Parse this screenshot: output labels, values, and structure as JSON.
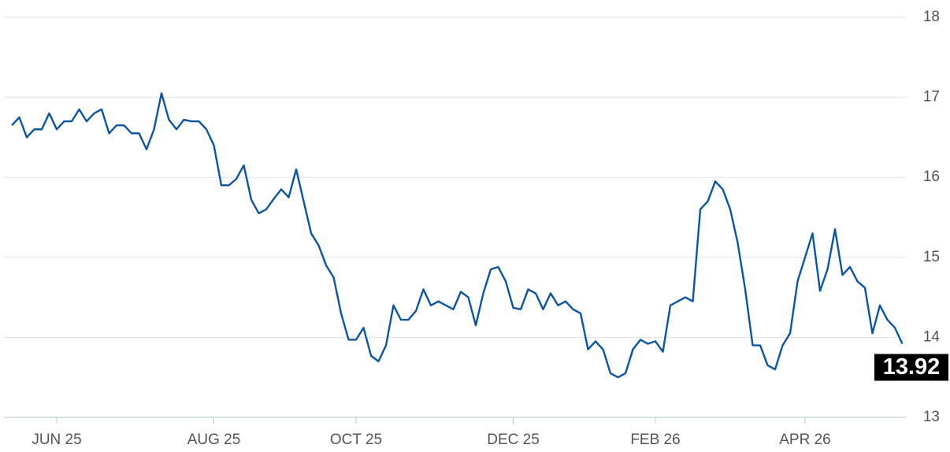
{
  "chart_data": {
    "type": "line",
    "color": "#0b55a3",
    "grid": true,
    "ylim": [
      13,
      18
    ],
    "yticks": [
      13,
      14,
      15,
      16,
      17,
      18
    ],
    "categories": [
      null,
      null,
      null,
      null,
      null,
      null,
      "JUN 25",
      null,
      null,
      null,
      null,
      null,
      null,
      null,
      null,
      null,
      null,
      null,
      null,
      null,
      null,
      null,
      null,
      null,
      null,
      null,
      null,
      "AUG 25",
      null,
      null,
      null,
      null,
      null,
      null,
      null,
      null,
      null,
      null,
      null,
      null,
      null,
      null,
      null,
      null,
      null,
      null,
      "OCT 25",
      null,
      null,
      null,
      null,
      null,
      null,
      null,
      null,
      null,
      null,
      null,
      null,
      null,
      null,
      null,
      null,
      null,
      null,
      null,
      null,
      "DEC 25",
      null,
      null,
      null,
      null,
      null,
      null,
      null,
      null,
      null,
      null,
      null,
      null,
      null,
      null,
      null,
      null,
      null,
      null,
      "FEB 26",
      null,
      null,
      null,
      null,
      null,
      null,
      null,
      null,
      null,
      null,
      null,
      null,
      null,
      null,
      null,
      null,
      null,
      null,
      null,
      "APR 26",
      null,
      null,
      null,
      null,
      null,
      null,
      null,
      null,
      null,
      null,
      null,
      null,
      null
    ],
    "values": [
      16.65,
      16.75,
      16.5,
      16.6,
      16.6,
      16.8,
      16.6,
      16.7,
      16.7,
      16.85,
      16.7,
      16.8,
      16.85,
      16.55,
      16.65,
      16.65,
      16.55,
      16.55,
      16.35,
      16.6,
      17.05,
      16.72,
      16.6,
      16.72,
      16.7,
      16.7,
      16.6,
      16.4,
      15.9,
      15.9,
      15.98,
      16.15,
      15.72,
      15.55,
      15.6,
      15.73,
      15.85,
      15.75,
      16.1,
      15.7,
      15.3,
      15.15,
      14.9,
      14.75,
      14.3,
      13.97,
      13.97,
      14.12,
      13.77,
      13.7,
      13.9,
      14.4,
      14.22,
      14.22,
      14.33,
      14.6,
      14.4,
      14.45,
      14.4,
      14.35,
      14.57,
      14.5,
      14.15,
      14.55,
      14.85,
      14.88,
      14.7,
      14.37,
      14.35,
      14.6,
      14.55,
      14.35,
      14.55,
      14.4,
      14.45,
      14.35,
      14.3,
      13.85,
      13.95,
      13.85,
      13.55,
      13.5,
      13.55,
      13.85,
      13.97,
      13.92,
      13.95,
      13.82,
      14.4,
      14.45,
      14.5,
      14.45,
      15.6,
      15.7,
      15.95,
      15.85,
      15.6,
      15.18,
      14.6,
      13.9,
      13.9,
      13.65,
      13.6,
      13.9,
      14.05,
      14.7,
      15.0,
      15.3,
      14.58,
      14.85,
      15.35,
      14.78,
      14.88,
      14.7,
      14.62,
      14.05,
      14.4,
      14.22,
      14.12,
      13.92
    ]
  }
}
